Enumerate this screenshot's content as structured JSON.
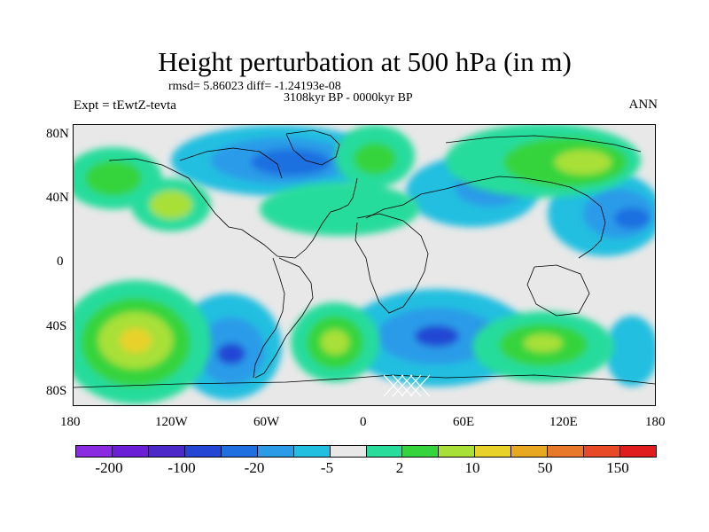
{
  "title": "Height perturbation at 500 hPa (in m)",
  "stats_line": "rmsd= 5.86023 diff= -1.24193e-08",
  "period": "3108kyr BP - 0000kyr BP",
  "experiment": "Expt = tEwtZ-tevta",
  "season": "ANN",
  "latitude_labels": [
    "80N",
    "40N",
    "0",
    "40S",
    "80S"
  ],
  "longitude_labels": [
    "180",
    "120W",
    "60W",
    "0",
    "60E",
    "120E",
    "180"
  ],
  "colorbar": {
    "colors": [
      "#8a2be2",
      "#6a1fd6",
      "#4b28c8",
      "#2346d4",
      "#1f6fe0",
      "#2b9be8",
      "#22bfe0",
      "#e8e8e8",
      "#28dc9c",
      "#36d43c",
      "#a8e038",
      "#e8d22a",
      "#e8a820",
      "#e8782a",
      "#e84a28",
      "#e01c1c"
    ],
    "labels": [
      "-200",
      "-100",
      "-20",
      "-5",
      "2",
      "10",
      "50",
      "150"
    ]
  },
  "colors": {
    "neutral": "#e8e8e8",
    "coast": "#000000"
  }
}
